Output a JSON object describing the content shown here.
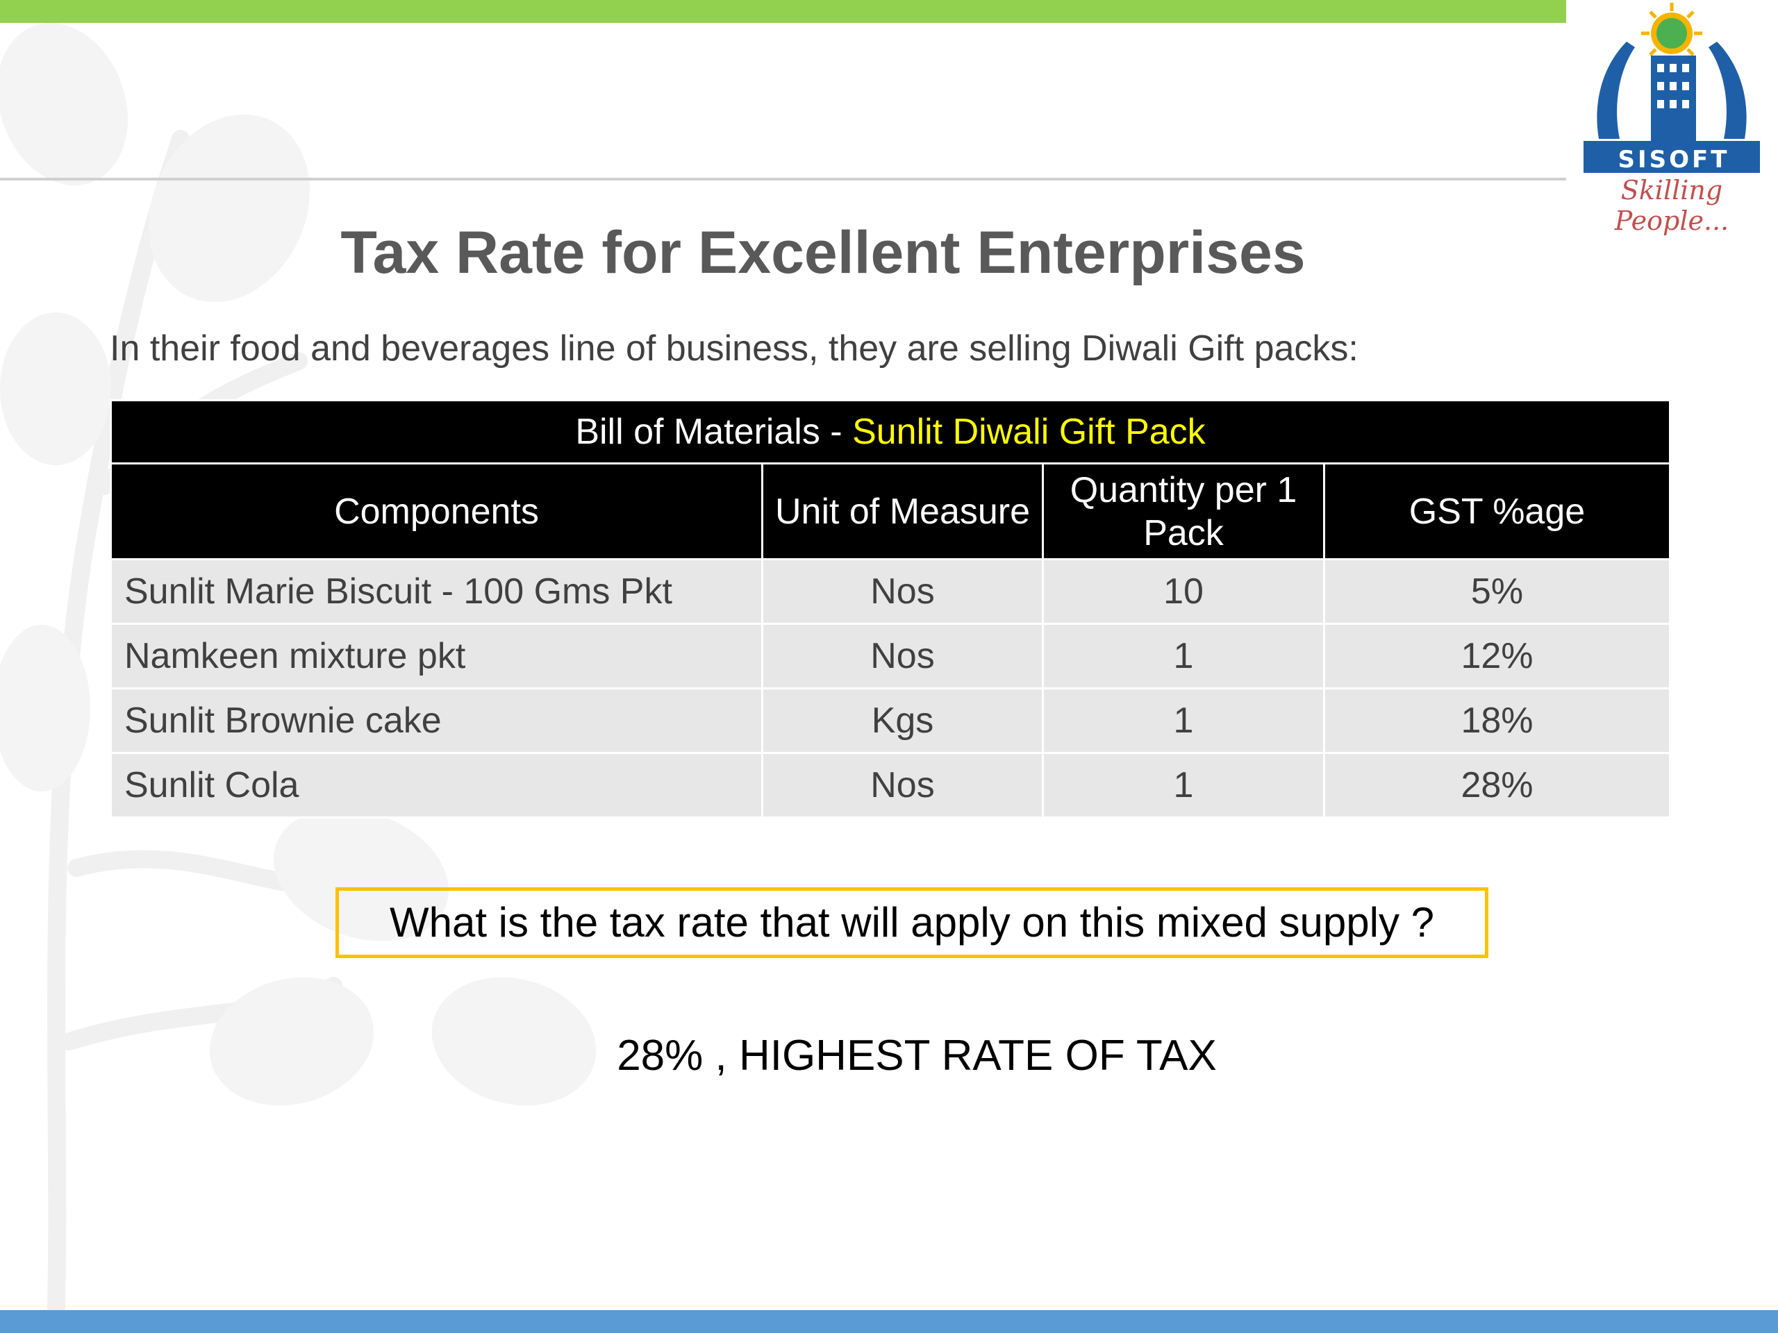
{
  "colors": {
    "top_bar": "#92d050",
    "bottom_bar": "#5b9bd5",
    "table_header_bg": "#000000",
    "table_highlight_text": "#ffff00",
    "question_border": "#ffc000",
    "row_bg": "#e7e7e7"
  },
  "logo": {
    "name": "SISOFT",
    "tagline": "Skilling People..."
  },
  "slide": {
    "title": "Tax Rate for Excellent Enterprises",
    "intro": "In their food and beverages line of business, they are selling Diwali Gift packs:"
  },
  "bom": {
    "title_prefix": "Bill of Materials - ",
    "title_highlight": "Sunlit Diwali Gift Pack",
    "headers": [
      "Components",
      "Unit of Measure",
      "Quantity per 1 Pack",
      "GST %age"
    ],
    "rows": [
      {
        "component": "Sunlit Marie Biscuit - 100 Gms Pkt",
        "uom": "Nos",
        "qty": "10",
        "gst": "5%"
      },
      {
        "component": "Namkeen mixture pkt",
        "uom": "Nos",
        "qty": "1",
        "gst": "12%"
      },
      {
        "component": "Sunlit Brownie cake",
        "uom": "Kgs",
        "qty": "1",
        "gst": "18%"
      },
      {
        "component": "Sunlit Cola",
        "uom": "Nos",
        "qty": "1",
        "gst": "28%"
      }
    ]
  },
  "question": "What is the tax rate that will apply on this mixed supply ?",
  "answer": "28% , HIGHEST RATE OF TAX"
}
